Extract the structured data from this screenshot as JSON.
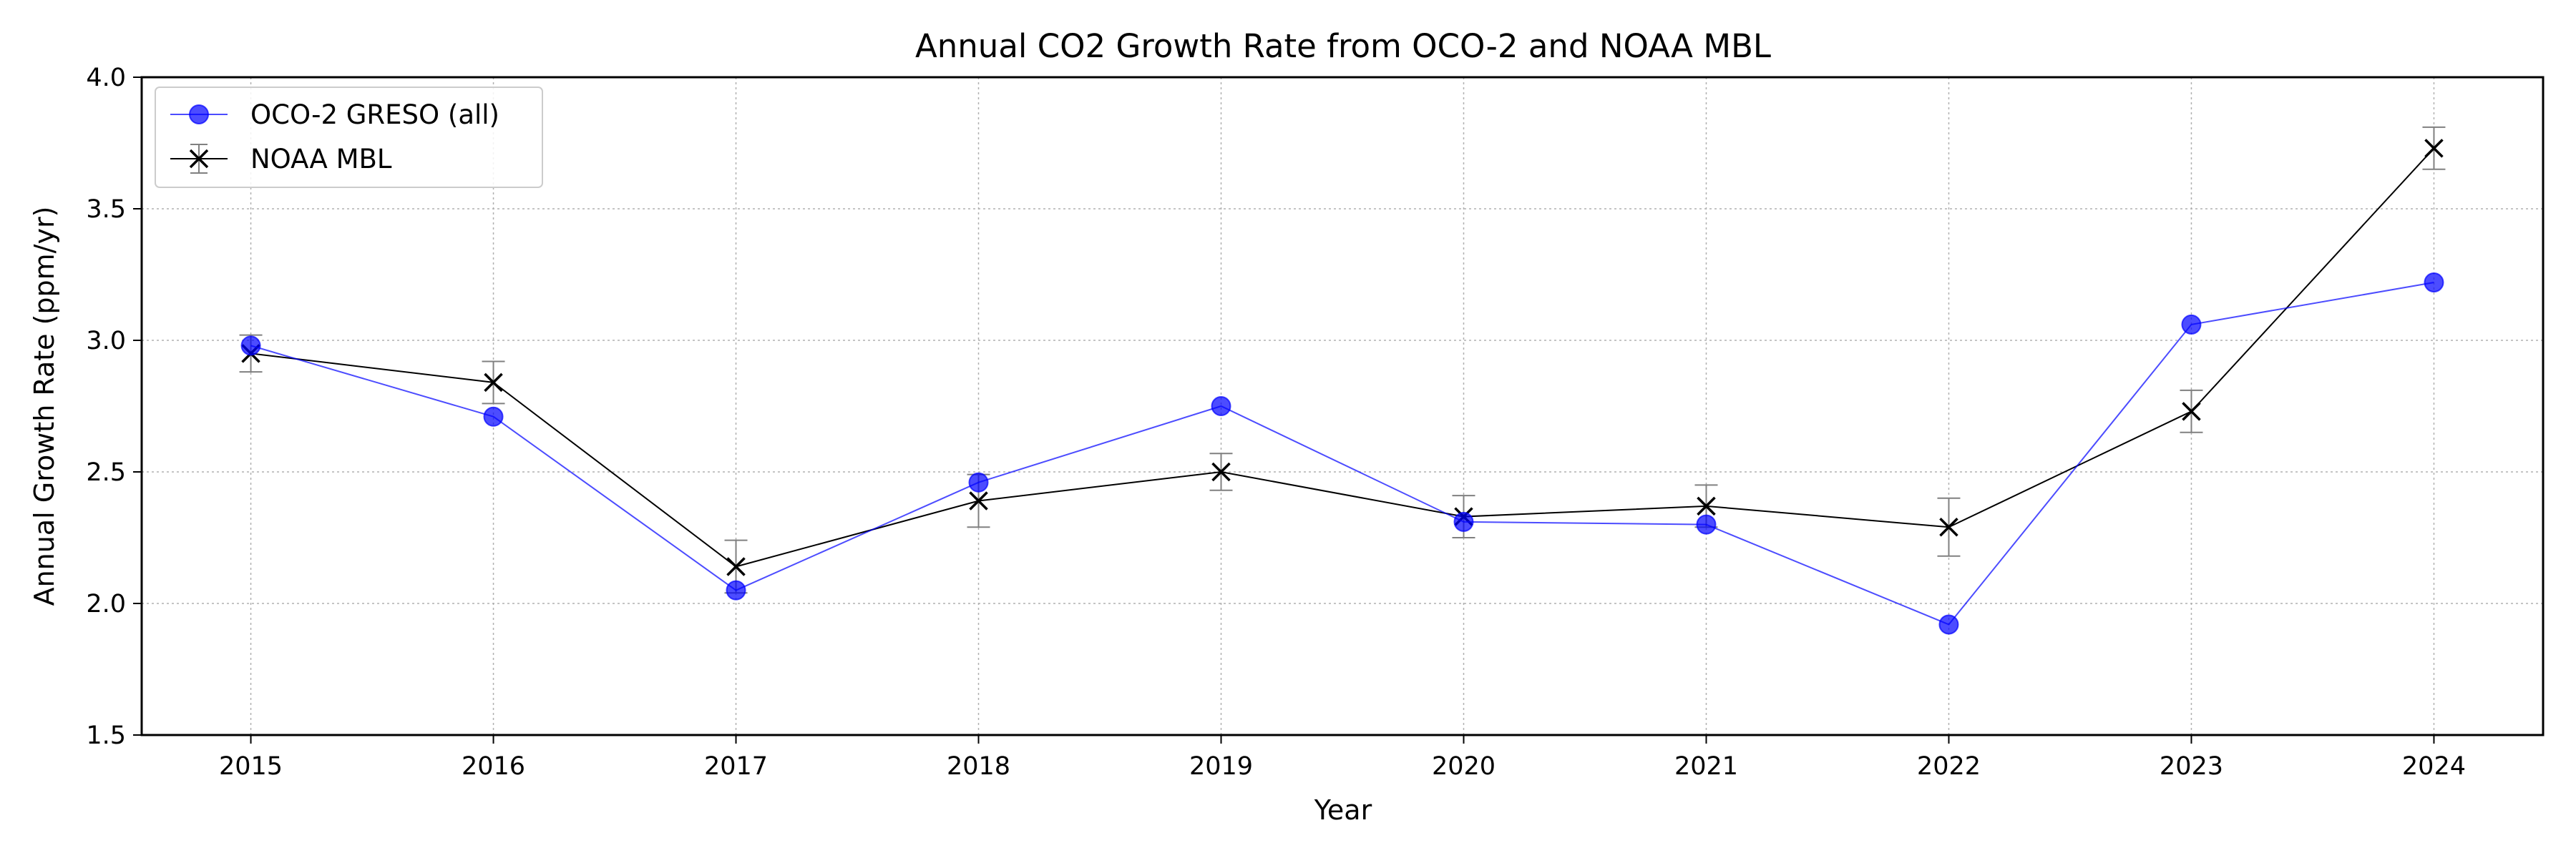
{
  "chart_data": {
    "type": "line",
    "title": "Annual CO2 Growth Rate from OCO-2 and NOAA MBL",
    "xlabel": "Year",
    "ylabel": "Annual Growth Rate (ppm/yr)",
    "x": [
      2015,
      2016,
      2017,
      2018,
      2019,
      2020,
      2021,
      2022,
      2023,
      2024
    ],
    "xlim": [
      2014.55,
      2024.45
    ],
    "ylim": [
      1.5,
      4.0
    ],
    "yticks": [
      1.5,
      2.0,
      2.5,
      3.0,
      3.5,
      4.0
    ],
    "ytick_labels": [
      "1.5",
      "2.0",
      "2.5",
      "3.0",
      "3.5",
      "4.0"
    ],
    "grid": true,
    "legend_position": "upper-left",
    "series": [
      {
        "name": "OCO-2 GRESO (all)",
        "marker": "circle",
        "color": "#0000ff",
        "values": [
          2.98,
          2.71,
          2.05,
          2.46,
          2.75,
          2.31,
          2.3,
          1.92,
          3.06,
          3.22
        ]
      },
      {
        "name": "NOAA MBL",
        "marker": "x",
        "color": "#000000",
        "errorbar_color": "#808080",
        "values": [
          2.95,
          2.84,
          2.14,
          2.39,
          2.5,
          2.33,
          2.37,
          2.29,
          2.73,
          3.73
        ],
        "errors": [
          0.07,
          0.08,
          0.1,
          0.1,
          0.07,
          0.08,
          0.08,
          0.11,
          0.08,
          0.08
        ]
      }
    ]
  }
}
